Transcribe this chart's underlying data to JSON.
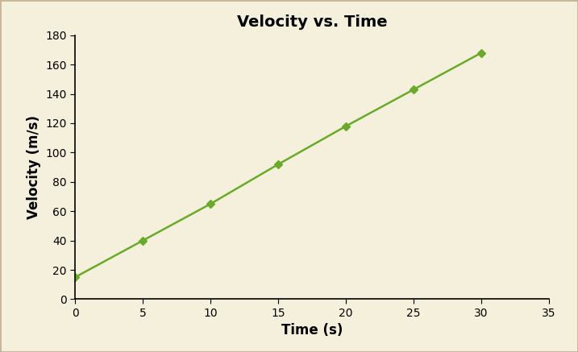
{
  "title": "Velocity vs. Time",
  "xlabel": "Time (s)",
  "ylabel": "Velocity (m/s)",
  "x": [
    0,
    5,
    10,
    15,
    20,
    25,
    30
  ],
  "y": [
    15,
    40,
    65,
    92,
    118,
    143,
    168
  ],
  "line_color": "#6aaa2a",
  "marker": "D",
  "marker_size": 5,
  "line_width": 1.8,
  "xlim": [
    0,
    35
  ],
  "ylim": [
    0,
    180
  ],
  "xticks": [
    0,
    5,
    10,
    15,
    20,
    25,
    30,
    35
  ],
  "yticks": [
    0,
    20,
    40,
    60,
    80,
    100,
    120,
    140,
    160,
    180
  ],
  "background_color": "#f5f0dc",
  "border_color": "#c8b89a",
  "title_fontsize": 14,
  "label_fontsize": 12,
  "tick_fontsize": 10,
  "title_fontweight": "bold",
  "label_fontweight": "bold"
}
